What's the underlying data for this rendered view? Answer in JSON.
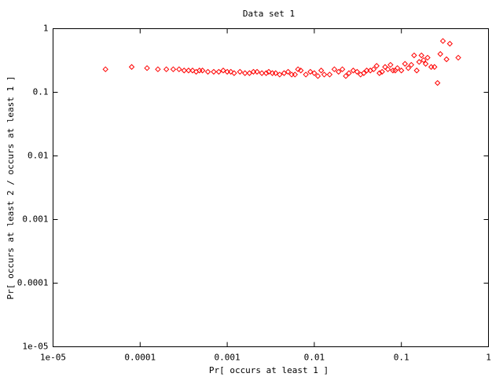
{
  "chart_data": {
    "type": "scatter",
    "title": "Data set 1",
    "x_label": "Pr[ occurs at least 1 ]",
    "y_label": "Pr[ occurs at least 2 / occurs at least 1 ]",
    "log_x": true,
    "log_y": true,
    "xlim": [
      1e-05,
      1
    ],
    "ylim": [
      1e-05,
      1
    ],
    "xticks": [
      {
        "value": 1e-05,
        "label": "1e-05"
      },
      0.0001,
      0.001,
      0.01,
      0.1,
      1
    ],
    "yticks": [
      {
        "value": 1e-05,
        "label": "1e-05"
      },
      0.0001,
      0.001,
      0.01,
      0.1,
      1
    ],
    "series": [
      {
        "color": "#ff0000",
        "x": [
          4e-05,
          8e-05,
          0.00012,
          0.00016,
          0.0002,
          0.00024,
          0.00028,
          0.00032,
          0.00036,
          0.0004,
          0.00044,
          0.00048,
          0.00052,
          0.0006,
          0.0007,
          0.0008,
          0.0009,
          0.001,
          0.0011,
          0.0012,
          0.0014,
          0.0016,
          0.0018,
          0.002,
          0.0022,
          0.0025,
          0.0028,
          0.003,
          0.0033,
          0.0036,
          0.004,
          0.0045,
          0.005,
          0.0055,
          0.006,
          0.0065,
          0.007,
          0.008,
          0.009,
          0.01,
          0.011,
          0.012,
          0.013,
          0.015,
          0.017,
          0.019,
          0.021,
          0.023,
          0.025,
          0.028,
          0.031,
          0.034,
          0.037,
          0.04,
          0.044,
          0.048,
          0.052,
          0.056,
          0.06,
          0.065,
          0.07,
          0.075,
          0.08,
          0.085,
          0.09,
          0.1,
          0.11,
          0.12,
          0.13,
          0.14,
          0.15,
          0.16,
          0.17,
          0.18,
          0.19,
          0.2,
          0.22,
          0.24,
          0.26,
          0.28,
          0.3,
          0.33,
          0.36,
          0.45
        ],
        "values": [
          0.23,
          0.25,
          0.24,
          0.23,
          0.23,
          0.23,
          0.23,
          0.22,
          0.22,
          0.22,
          0.21,
          0.22,
          0.22,
          0.21,
          0.21,
          0.21,
          0.22,
          0.21,
          0.21,
          0.2,
          0.21,
          0.2,
          0.2,
          0.21,
          0.21,
          0.2,
          0.2,
          0.21,
          0.2,
          0.2,
          0.19,
          0.2,
          0.21,
          0.19,
          0.19,
          0.23,
          0.22,
          0.19,
          0.21,
          0.2,
          0.18,
          0.22,
          0.19,
          0.19,
          0.23,
          0.21,
          0.23,
          0.18,
          0.2,
          0.22,
          0.21,
          0.19,
          0.2,
          0.22,
          0.22,
          0.23,
          0.26,
          0.2,
          0.21,
          0.25,
          0.23,
          0.27,
          0.22,
          0.22,
          0.24,
          0.22,
          0.28,
          0.24,
          0.27,
          0.38,
          0.22,
          0.3,
          0.38,
          0.32,
          0.28,
          0.35,
          0.25,
          0.25,
          0.14,
          0.4,
          0.64,
          0.33,
          0.58,
          0.35
        ]
      }
    ]
  }
}
